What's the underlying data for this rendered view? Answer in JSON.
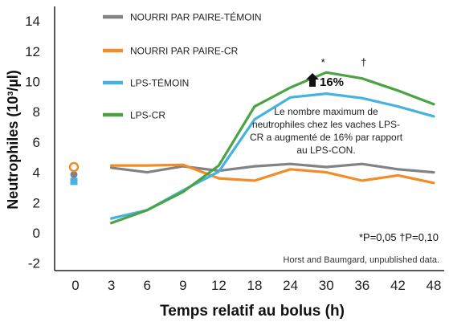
{
  "chart_data": {
    "type": "line",
    "xlabel": "Temps relatif au bolus (h)",
    "ylabel": "Neutrophiles (10³/µl)",
    "x_ticks": [
      "0",
      "3",
      "6",
      "9",
      "12",
      "18",
      "24",
      "30",
      "36",
      "42",
      "48"
    ],
    "y_ticks": [
      14,
      12,
      10,
      8,
      6,
      4,
      2,
      0,
      -2
    ],
    "ylim": [
      -2.5,
      14.5
    ],
    "legend_position": "top-left",
    "series": [
      {
        "name": "NOURRI PAR PAIRE-TÉMOIN",
        "color": "#808285",
        "x": [
          "0",
          "3",
          "6",
          "9",
          "12",
          "18",
          "24",
          "30",
          "36",
          "42",
          "48"
        ],
        "values": [
          3.85,
          4.3,
          4.0,
          4.4,
          4.1,
          4.4,
          4.55,
          4.35,
          4.55,
          4.2,
          4.0
        ]
      },
      {
        "name": "NOURRI PAR PAIRE-CR",
        "color": "#f28c28",
        "x": [
          "0",
          "3",
          "6",
          "9",
          "12",
          "18",
          "24",
          "30",
          "36",
          "42",
          "48"
        ],
        "values": [
          4.35,
          4.45,
          4.45,
          4.5,
          3.6,
          3.45,
          4.2,
          4.0,
          3.45,
          3.8,
          3.3
        ]
      },
      {
        "name": "LPS-TÉMOIN",
        "color": "#45b2e1",
        "x": [
          "0",
          "3",
          "6",
          "9",
          "12",
          "18",
          "24",
          "30",
          "36",
          "42",
          "48"
        ],
        "values": [
          3.4,
          0.95,
          1.5,
          2.8,
          4.05,
          7.5,
          8.95,
          9.2,
          8.9,
          8.35,
          7.7
        ]
      },
      {
        "name": "LPS-CR",
        "color": "#4ba345",
        "x": [
          "0",
          "3",
          "6",
          "9",
          "12",
          "18",
          "24",
          "30",
          "36",
          "42",
          "48"
        ],
        "values": [
          3.6,
          0.65,
          1.5,
          2.7,
          4.45,
          8.35,
          9.6,
          10.6,
          10.2,
          9.4,
          8.5
        ]
      }
    ],
    "annotations": {
      "peak_marker": "16%",
      "note_lines": [
        "Le nombre maximum de",
        "neutrophiles chez les vaches LPS-",
        "CR a augmenté de 16% par rapport",
        "au LPS-CON."
      ],
      "star_symbol": "*",
      "dagger_symbol": "†",
      "pvalue_text": "*P=0,05  †P=0,10",
      "source": "Horst and Baumgard, unpublished data."
    }
  }
}
